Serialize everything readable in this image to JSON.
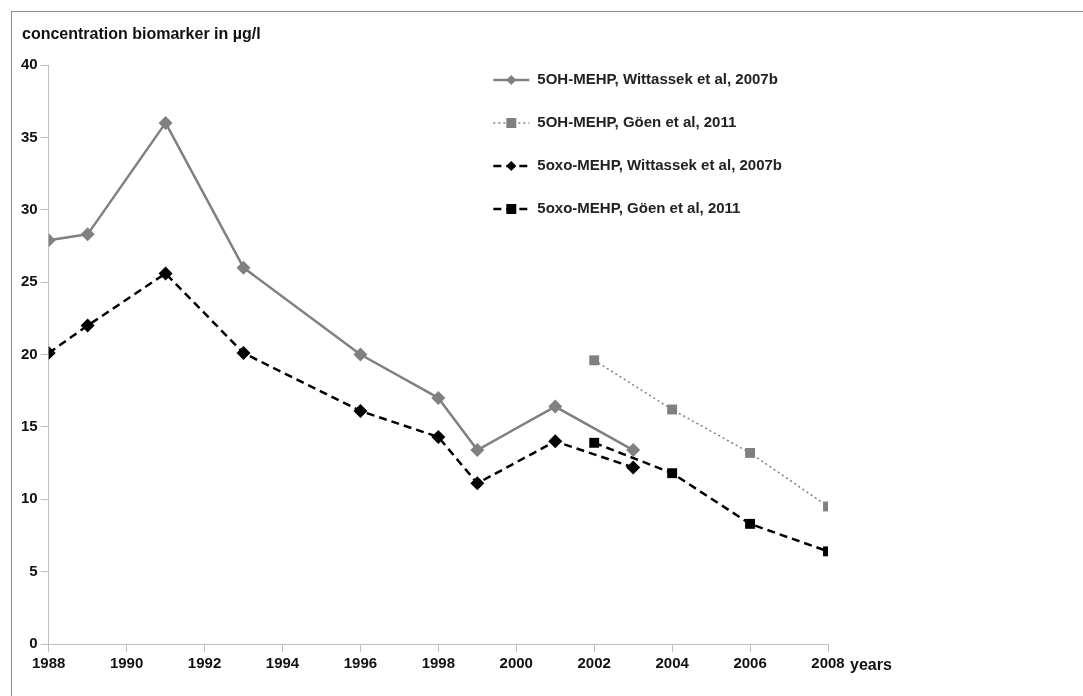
{
  "chart_data": {
    "type": "line",
    "ylabel": "concentration biomarker in µg/l",
    "xlabel": "years",
    "xlim": [
      1988,
      2008
    ],
    "xticks": [
      1988,
      1990,
      1992,
      1994,
      1996,
      1998,
      2000,
      2002,
      2004,
      2006,
      2008
    ],
    "ylim": [
      0,
      40
    ],
    "yticks": [
      0,
      5,
      10,
      15,
      20,
      25,
      30,
      35,
      40
    ],
    "legend": "top right",
    "series": [
      {
        "name": "5OH-MEHP, Wittassek et al, 2007b",
        "color": "#808080",
        "marker": "diamond",
        "line_style": "solid",
        "x": [
          1988,
          1989,
          1991,
          1993,
          1996,
          1998,
          1999,
          2001,
          2003
        ],
        "values": [
          27.9,
          28.3,
          36,
          26,
          20,
          17,
          13.4,
          16.4,
          13.4
        ]
      },
      {
        "name": "5OH-MEHP, Göen et al, 2011",
        "color": "#808080",
        "marker": "square",
        "line_style": "dotted",
        "x": [
          2002,
          2004,
          2006,
          2008
        ],
        "values": [
          19.6,
          16.2,
          13.2,
          9.5
        ]
      },
      {
        "name": "5oxo-MEHP, Wittassek et al, 2007b",
        "color": "#000000",
        "marker": "diamond",
        "line_style": "dashed",
        "x": [
          1988,
          1989,
          1991,
          1993,
          1996,
          1998,
          1999,
          2001,
          2003
        ],
        "values": [
          20.1,
          22,
          25.6,
          20.1,
          16.1,
          14.3,
          11.1,
          14,
          12.2
        ]
      },
      {
        "name": "5oxo-MEHP, Göen et al, 2011",
        "color": "#000000",
        "marker": "square",
        "line_style": "dashed",
        "x": [
          2002,
          2004,
          2006,
          2008
        ],
        "values": [
          13.9,
          11.8,
          8.3,
          6.4
        ]
      }
    ]
  }
}
